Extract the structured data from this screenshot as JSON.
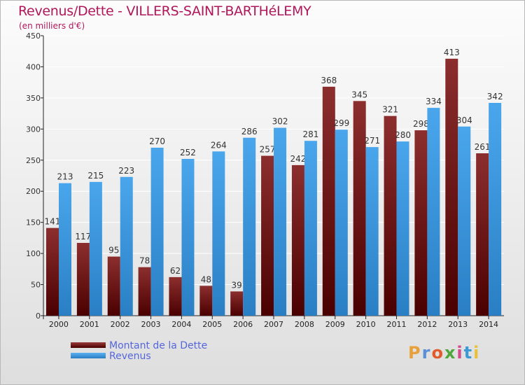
{
  "title": "Revenus/Dette - VILLERS-SAINT-BARTHéLEMY",
  "subtitle": "(en milliers d'€)",
  "logo": "Proxiti",
  "colors": {
    "dette": "#7a1f1f",
    "revenus": "#3c9ae0",
    "title": "#b0175b",
    "legend_text": "#5566dd"
  },
  "chart_data": {
    "type": "bar",
    "categories": [
      "2000",
      "2001",
      "2002",
      "2003",
      "2004",
      "2005",
      "2006",
      "2007",
      "2008",
      "2009",
      "2010",
      "2011",
      "2012",
      "2013",
      "2014"
    ],
    "series": [
      {
        "name": "Montant de la Dette",
        "values": [
          141,
          117,
          95,
          78,
          62,
          48,
          39,
          257,
          242,
          368,
          345,
          321,
          298,
          413,
          261
        ]
      },
      {
        "name": "Revenus",
        "values": [
          213,
          215,
          223,
          270,
          252,
          264,
          286,
          302,
          281,
          299,
          271,
          280,
          334,
          304,
          342
        ]
      }
    ],
    "ylim": [
      0,
      450
    ],
    "yticks": [
      0,
      50,
      100,
      150,
      200,
      250,
      300,
      350,
      400,
      450
    ],
    "grid": true,
    "legend": "bottom-left"
  }
}
